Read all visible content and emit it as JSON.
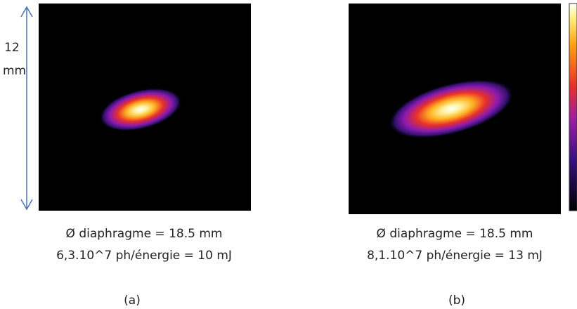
{
  "scale_annotation": {
    "value": "12",
    "unit": "mm"
  },
  "panels": [
    {
      "caption": [
        "Ø diaphragme = 18.5 mm",
        "6,3.10^7 ph/énergie = 10 mJ"
      ],
      "label": "(a)"
    },
    {
      "caption": [
        "Ø diaphragme = 18.5 mm",
        "8,1.10^7 ph/énergie = 13 mJ"
      ],
      "label": "(b)"
    }
  ]
}
